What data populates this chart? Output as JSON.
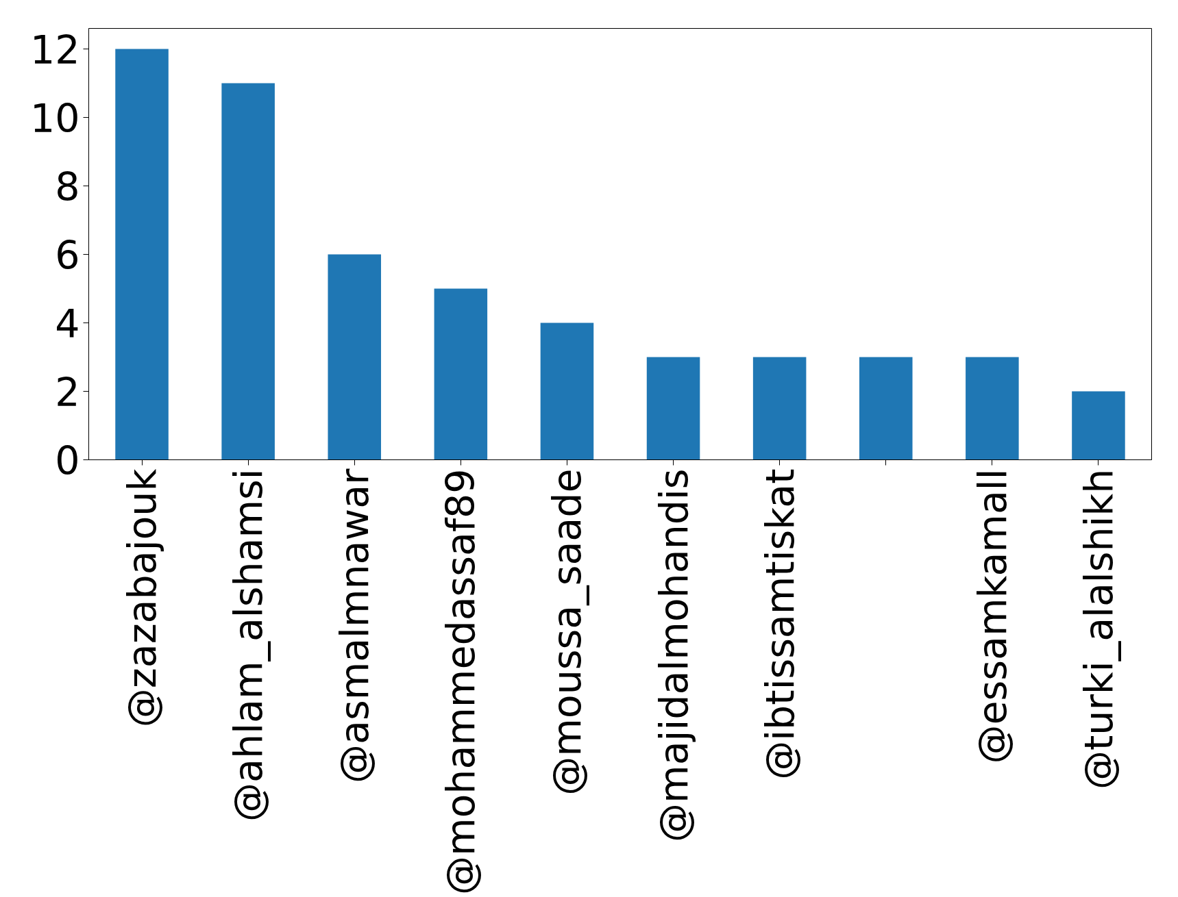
{
  "chart_data": {
    "type": "bar",
    "categories": [
      "@zazabajouk",
      "@ahlam_alshamsi",
      "@asmalmnawar",
      "@mohammedassaf89",
      "@moussa_saade",
      "@majidalmohandis",
      "@ibtissamtiskat",
      null,
      "@essamkamall",
      "@turki_alalshikh"
    ],
    "values": [
      12,
      11,
      6,
      5,
      4,
      3,
      3,
      3,
      3,
      2
    ],
    "color": "#1f77b4",
    "ylim": [
      0,
      12.6
    ],
    "yticks": [
      0,
      2,
      4,
      6,
      8,
      10,
      12
    ],
    "grid": false
  }
}
